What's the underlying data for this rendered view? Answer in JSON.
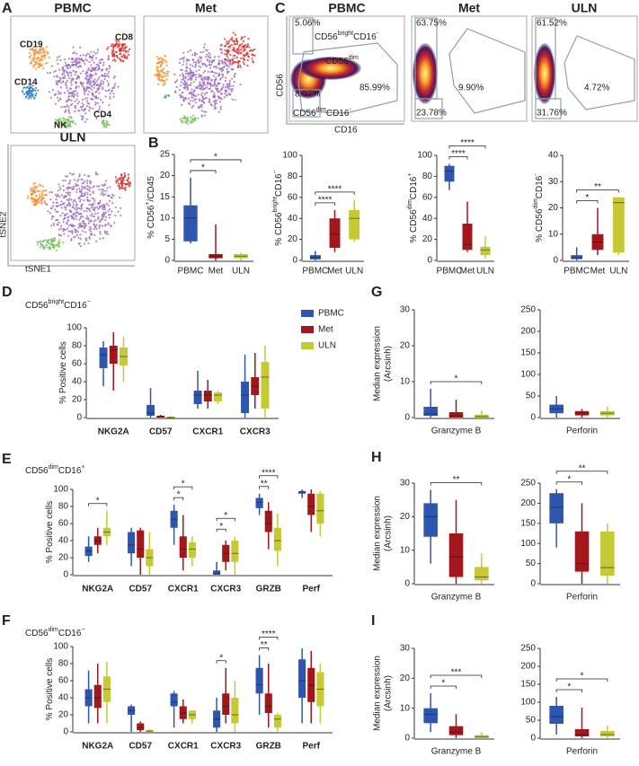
{
  "panels": [
    "A",
    "B",
    "C",
    "D",
    "E",
    "F",
    "G",
    "H",
    "I"
  ],
  "tsne": {
    "titles": [
      "PBMC",
      "Met",
      "ULN"
    ],
    "clusters": [
      {
        "name": "CD19",
        "color": "#f39232"
      },
      {
        "name": "CD8",
        "color": "#d7302b"
      },
      {
        "name": "CD14",
        "color": "#2d7fc1"
      },
      {
        "name": "NK",
        "color": "#7cc061"
      },
      {
        "name": "CD4",
        "color": "#9b6bbd"
      }
    ],
    "x_axis": "tSNE1",
    "y_axis": "tSNE2"
  },
  "flow": {
    "titles": [
      "PBMC",
      "Met",
      "ULN"
    ],
    "y_axis": "CD56",
    "x_axis": "CD16",
    "gates": [
      [
        "5.06%",
        "8.07%",
        "85.99%"
      ],
      [
        "63.75%",
        "23.78%",
        "9.90%"
      ],
      [
        "61.52%",
        "31.76%",
        "4.72%"
      ]
    ],
    "population_labels": [
      [
        "CD56",
        "bright",
        "CD16",
        "-"
      ],
      [
        "CD56",
        "dim"
      ],
      [
        "CD56",
        "dim",
        "CD16",
        "-"
      ]
    ]
  },
  "chart_data": [
    {
      "type": "box",
      "ylabel": [
        "% CD56",
        "+",
        "/CD45"
      ],
      "categories": [
        "PBMC",
        "Met",
        "ULN"
      ],
      "colors": [
        "#2e56b0",
        "#a3161c",
        "#c5c934"
      ],
      "values": [
        [
          4,
          4.5,
          10,
          13,
          19.5
        ],
        [
          0,
          0.5,
          1,
          1.5,
          8.5
        ],
        [
          0,
          0.5,
          1,
          1.5,
          1.8
        ]
      ],
      "ylim": [
        0,
        25
      ],
      "yticks": [
        0,
        5,
        10,
        15,
        20,
        25
      ],
      "brackets": [
        {
          "groups": [
            0,
            1
          ],
          "label": "*"
        },
        {
          "groups": [
            0,
            2
          ],
          "label": "*"
        }
      ]
    },
    {
      "type": "box",
      "ylabel": [
        "% CD56",
        "bright",
        "CD16",
        "−"
      ],
      "categories": [
        "PBMC",
        "Met",
        "ULN"
      ],
      "colors": [
        "#2e56b0",
        "#a3161c",
        "#c5c934"
      ],
      "values": [
        [
          0,
          1,
          3,
          5,
          9
        ],
        [
          8,
          12,
          25,
          40,
          48
        ],
        [
          18,
          20,
          40,
          48,
          57
        ]
      ],
      "ylim": [
        0,
        100
      ],
      "yticks": [
        0,
        20,
        40,
        60,
        80,
        100
      ],
      "brackets": [
        {
          "groups": [
            0,
            1
          ],
          "label": "****"
        },
        {
          "groups": [
            0,
            2
          ],
          "label": "****"
        }
      ]
    },
    {
      "type": "box",
      "ylabel": [
        "% CD56",
        "dim",
        "CD16",
        "+"
      ],
      "categories": [
        "PBMC",
        "Met",
        "ULN"
      ],
      "colors": [
        "#2e56b0",
        "#a3161c",
        "#c5c934"
      ],
      "values": [
        [
          67,
          75,
          85,
          90,
          92
        ],
        [
          8,
          10,
          15,
          35,
          56
        ],
        [
          2,
          5,
          10,
          13,
          23
        ]
      ],
      "ylim": [
        0,
        100
      ],
      "yticks": [
        0,
        20,
        40,
        60,
        80,
        100
      ],
      "brackets": [
        {
          "groups": [
            0,
            1
          ],
          "label": "****"
        },
        {
          "groups": [
            0,
            2
          ],
          "label": "****"
        }
      ]
    },
    {
      "type": "box",
      "ylabel": [
        "% CD56",
        "dim",
        "CD16",
        "-"
      ],
      "categories": [
        "PBMC",
        "Met",
        "ULN"
      ],
      "colors": [
        "#2e56b0",
        "#a3161c",
        "#c5c934"
      ],
      "values": [
        [
          0,
          0.5,
          1,
          2,
          5
        ],
        [
          2,
          4,
          7,
          10,
          20
        ],
        [
          2,
          3,
          22,
          24,
          24
        ]
      ],
      "ylim": [
        0,
        40
      ],
      "yticks": [
        0,
        10,
        20,
        30,
        40
      ],
      "brackets": [
        {
          "groups": [
            0,
            1
          ],
          "label": "*"
        },
        {
          "groups": [
            0,
            2
          ],
          "label": "**"
        }
      ]
    },
    {
      "type": "box",
      "title": [
        "CD56",
        "bright",
        "CD16",
        "−"
      ],
      "ylabel": [
        "% Positive cells"
      ],
      "categories": [
        "NKG2A",
        "CD57",
        "CXCR1",
        "CXCR3"
      ],
      "series": [
        {
          "name": "PBMC",
          "color": "#2e56b0",
          "values": [
            [
              35,
              55,
              70,
              78,
              85
            ],
            [
              0,
              2,
              5,
              14,
              33
            ],
            [
              10,
              15,
              25,
              30,
              52
            ],
            [
              0,
              5,
              25,
              40,
              70
            ]
          ]
        },
        {
          "name": "Met",
          "color": "#a3161c",
          "values": [
            [
              30,
              60,
              75,
              80,
              95
            ],
            [
              0,
              0,
              1,
              2,
              3
            ],
            [
              10,
              18,
              25,
              30,
              42
            ],
            [
              10,
              25,
              35,
              45,
              72
            ]
          ]
        },
        {
          "name": "ULN",
          "color": "#c5c934",
          "values": [
            [
              40,
              58,
              68,
              78,
              90
            ],
            [
              0,
              0,
              0,
              1,
              2
            ],
            [
              15,
              18,
              25,
              28,
              30
            ],
            [
              0,
              10,
              45,
              62,
              80
            ]
          ]
        }
      ],
      "ylim": [
        0,
        100
      ],
      "yticks": [
        0,
        20,
        40,
        60,
        80,
        100
      ]
    },
    {
      "type": "box",
      "title": [
        "CD56",
        "dim",
        "CD16",
        "+"
      ],
      "ylabel": [
        "% Positive cells"
      ],
      "categories": [
        "NKG2A",
        "CD57",
        "CXCR1",
        "CXCR3",
        "GRZB",
        "Perf"
      ],
      "series": [
        {
          "color": "#2e56b0",
          "values": [
            [
              15,
              22,
              28,
              33,
              45
            ],
            [
              10,
              25,
              35,
              50,
              55
            ],
            [
              35,
              55,
              65,
              75,
              82
            ],
            [
              0,
              0,
              2,
              5,
              15
            ],
            [
              70,
              78,
              85,
              90,
              95
            ],
            [
              90,
              95,
              97,
              98,
              100
            ]
          ]
        },
        {
          "color": "#a3161c",
          "values": [
            [
              25,
              35,
              40,
              45,
              55
            ],
            [
              0,
              20,
              30,
              52,
              55
            ],
            [
              5,
              20,
              30,
              45,
              70
            ],
            [
              5,
              15,
              25,
              35,
              40
            ],
            [
              30,
              50,
              60,
              75,
              85
            ],
            [
              50,
              70,
              80,
              95,
              100
            ]
          ]
        },
        {
          "color": "#c5c934",
          "values": [
            [
              35,
              45,
              50,
              55,
              75
            ],
            [
              0,
              10,
              20,
              30,
              50
            ],
            [
              10,
              20,
              30,
              38,
              45
            ],
            [
              0,
              15,
              25,
              40,
              45
            ],
            [
              10,
              28,
              40,
              55,
              72
            ],
            [
              45,
              60,
              75,
              95,
              98
            ]
          ]
        }
      ],
      "ylim": [
        0,
        100
      ],
      "yticks": [
        0,
        20,
        40,
        60,
        80,
        100
      ],
      "brackets": [
        {
          "category": 0,
          "series": [
            0,
            2
          ],
          "label": "*"
        },
        {
          "category": 2,
          "series": [
            0,
            1
          ],
          "label": "*"
        },
        {
          "category": 2,
          "series": [
            0,
            2
          ],
          "label": "*"
        },
        {
          "category": 3,
          "series": [
            0,
            1
          ],
          "label": "*"
        },
        {
          "category": 3,
          "series": [
            0,
            2
          ],
          "label": "*"
        },
        {
          "category": 4,
          "series": [
            0,
            1
          ],
          "label": "**"
        },
        {
          "category": 4,
          "series": [
            0,
            2
          ],
          "label": "****"
        }
      ]
    },
    {
      "type": "box",
      "title": [
        "CD56",
        "dim",
        "CD16",
        "−"
      ],
      "ylabel": [
        "% Positive cells"
      ],
      "categories": [
        "NKG2A",
        "CD57",
        "CXCR1",
        "CXCR3",
        "GRZB",
        "Perf"
      ],
      "series": [
        {
          "color": "#2e56b0",
          "values": [
            [
              10,
              30,
              40,
              50,
              72
            ],
            [
              0,
              20,
              25,
              30,
              32
            ],
            [
              5,
              30,
              35,
              45,
              48
            ],
            [
              0,
              5,
              15,
              25,
              40
            ],
            [
              20,
              45,
              55,
              75,
              90
            ],
            [
              10,
              40,
              60,
              85,
              98
            ]
          ]
        },
        {
          "color": "#a3161c",
          "values": [
            [
              10,
              28,
              40,
              55,
              80
            ],
            [
              0,
              2,
              5,
              10,
              12
            ],
            [
              10,
              15,
              22,
              30,
              38
            ],
            [
              10,
              20,
              30,
              45,
              75
            ],
            [
              5,
              22,
              30,
              45,
              80
            ],
            [
              10,
              35,
              55,
              75,
              95
            ]
          ]
        },
        {
          "color": "#c5c934",
          "values": [
            [
              10,
              35,
              50,
              65,
              82
            ],
            [
              0,
              0,
              1,
              2,
              3
            ],
            [
              10,
              15,
              20,
              25,
              25
            ],
            [
              0,
              10,
              20,
              40,
              60
            ],
            [
              0,
              5,
              15,
              20,
              22
            ],
            [
              10,
              30,
              50,
              70,
              80
            ]
          ]
        }
      ],
      "ylim": [
        0,
        100
      ],
      "yticks": [
        0,
        20,
        40,
        60,
        80,
        100
      ],
      "brackets": [
        {
          "category": 3,
          "series": [
            0,
            1
          ],
          "label": "*"
        },
        {
          "category": 4,
          "series": [
            0,
            1
          ],
          "label": "**"
        },
        {
          "category": 4,
          "series": [
            0,
            2
          ],
          "label": "****"
        }
      ]
    },
    {
      "type": "box",
      "ylabel_lines": [
        "Median expression",
        "(Arcsinh)"
      ],
      "xlabel": "Granzyme B",
      "colors": [
        "#2e56b0",
        "#a3161c",
        "#c5c934"
      ],
      "values": [
        [
          0,
          0.5,
          1,
          3,
          8
        ],
        [
          0,
          0,
          0.5,
          1.5,
          5
        ],
        [
          0,
          0,
          0.3,
          0.8,
          2
        ]
      ],
      "ylim": [
        0,
        30
      ],
      "yticks": [
        0,
        10,
        20,
        30
      ],
      "brackets": [
        {
          "groups": [
            0,
            2
          ],
          "label": "*"
        }
      ]
    },
    {
      "type": "box",
      "xlabel": "Perforin",
      "colors": [
        "#2e56b0",
        "#a3161c",
        "#c5c934"
      ],
      "values": [
        [
          0,
          10,
          20,
          30,
          50
        ],
        [
          0,
          5,
          10,
          15,
          20
        ],
        [
          0,
          5,
          10,
          15,
          25
        ]
      ],
      "ylim": [
        0,
        250
      ],
      "yticks": [
        0,
        50,
        100,
        150,
        200,
        250
      ]
    },
    {
      "type": "box",
      "ylabel_lines": [
        "Median expression",
        "(Arcsinh)"
      ],
      "xlabel": "Granzyme B",
      "colors": [
        "#2e56b0",
        "#a3161c",
        "#c5c934"
      ],
      "values": [
        [
          6,
          14,
          20,
          24,
          28
        ],
        [
          0,
          2,
          8,
          15,
          25
        ],
        [
          0,
          1,
          2,
          5,
          9
        ]
      ],
      "ylim": [
        0,
        30
      ],
      "yticks": [
        0,
        10,
        20,
        30
      ],
      "brackets": [
        {
          "groups": [
            0,
            2
          ],
          "label": "**"
        }
      ]
    },
    {
      "type": "box",
      "xlabel": "Perforin",
      "colors": [
        "#2e56b0",
        "#a3161c",
        "#c5c934"
      ],
      "values": [
        [
          90,
          150,
          190,
          225,
          235
        ],
        [
          0,
          30,
          50,
          130,
          200
        ],
        [
          0,
          20,
          40,
          130,
          150
        ]
      ],
      "ylim": [
        0,
        250
      ],
      "yticks": [
        0,
        50,
        100,
        150,
        200,
        250
      ],
      "brackets": [
        {
          "groups": [
            0,
            1
          ],
          "label": "*"
        },
        {
          "groups": [
            0,
            2
          ],
          "label": "**"
        }
      ]
    },
    {
      "type": "box",
      "ylabel_lines": [
        "Median expression",
        "(Arcsinh)"
      ],
      "xlabel": "Granzyme B",
      "colors": [
        "#2e56b0",
        "#a3161c",
        "#c5c934"
      ],
      "values": [
        [
          2,
          5,
          8,
          10,
          15
        ],
        [
          0,
          1,
          2,
          4,
          8
        ],
        [
          0,
          0,
          0.5,
          1,
          2
        ]
      ],
      "ylim": [
        0,
        30
      ],
      "yticks": [
        0,
        10,
        20,
        30
      ],
      "brackets": [
        {
          "groups": [
            0,
            1
          ],
          "label": "*"
        },
        {
          "groups": [
            0,
            2
          ],
          "label": "***"
        }
      ]
    },
    {
      "type": "box",
      "xlabel": "Perforin",
      "colors": [
        "#2e56b0",
        "#a3161c",
        "#c5c934"
      ],
      "values": [
        [
          10,
          40,
          60,
          90,
          115
        ],
        [
          0,
          5,
          10,
          25,
          85
        ],
        [
          0,
          5,
          10,
          20,
          35
        ]
      ],
      "ylim": [
        0,
        250
      ],
      "yticks": [
        0,
        50,
        100,
        150,
        200,
        250
      ],
      "brackets": [
        {
          "groups": [
            0,
            1
          ],
          "label": "*"
        },
        {
          "groups": [
            0,
            2
          ],
          "label": "*"
        }
      ]
    }
  ]
}
